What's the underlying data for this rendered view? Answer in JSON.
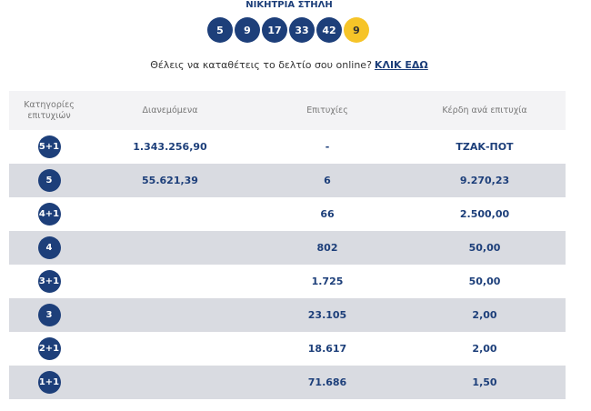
{
  "header": {
    "title": "ΝΙΚΗΤΡΙΑ ΣΤΗΛΗ",
    "numbers": [
      "5",
      "9",
      "17",
      "33",
      "42"
    ],
    "bonus": "9",
    "prompt": "Θέλεις να καταθέτεις το δελτίο σου online?",
    "link": "ΚΛΙΚ ΕΔΩ"
  },
  "table": {
    "columns": [
      "Κατηγορίες επιτυχιών",
      "Διανεμόμενα",
      "Επιτυχίες",
      "Κέρδη ανά επιτυχία"
    ],
    "rows": [
      {
        "category": "5+1",
        "distributed": "1.343.256,90",
        "winners": "-",
        "prize": "ΤΖΑΚ-ΠΟΤ"
      },
      {
        "category": "5",
        "distributed": "55.621,39",
        "winners": "6",
        "prize": "9.270,23"
      },
      {
        "category": "4+1",
        "winners": "66",
        "prize": "2.500,00"
      },
      {
        "category": "4",
        "winners": "802",
        "prize": "50,00"
      },
      {
        "category": "3+1",
        "winners": "1.725",
        "prize": "50,00"
      },
      {
        "category": "3",
        "winners": "23.105",
        "prize": "2,00"
      },
      {
        "category": "2+1",
        "winners": "18.617",
        "prize": "2,00"
      },
      {
        "category": "1+1",
        "winners": "71.686",
        "prize": "1,50"
      }
    ]
  }
}
